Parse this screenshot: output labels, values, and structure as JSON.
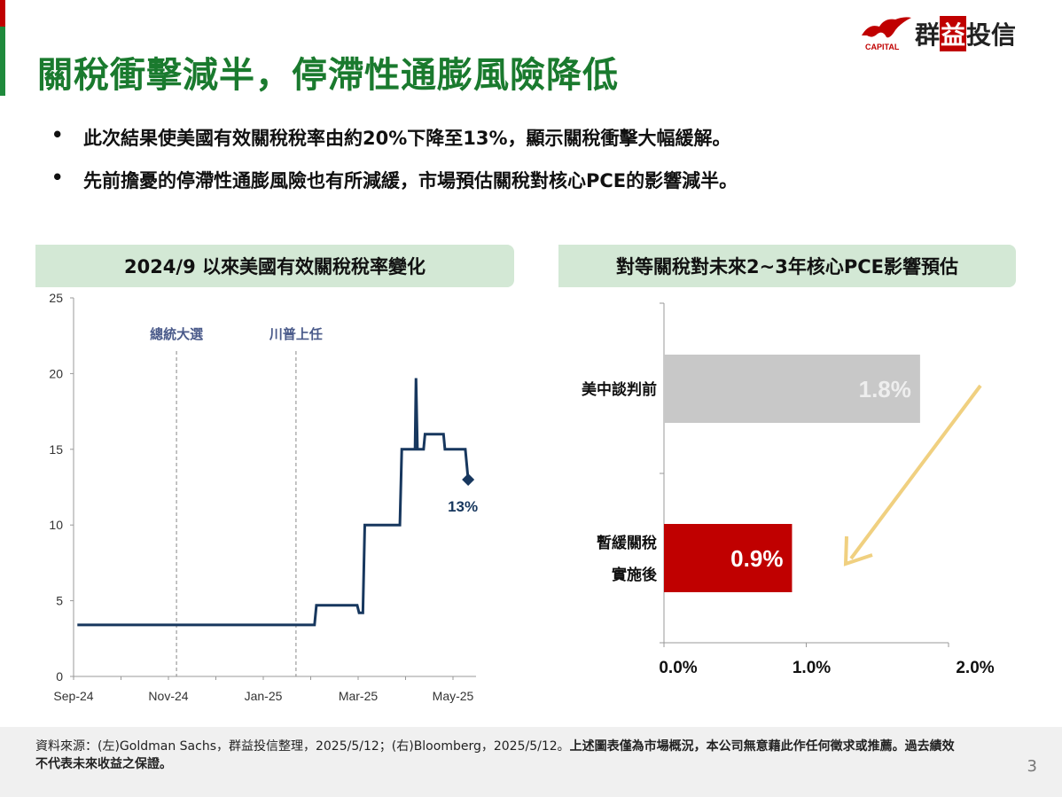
{
  "title": "關稅衝擊減半，停滯性通膨風險降低",
  "logo": {
    "caption": "CAPITAL",
    "name_a": "群",
    "name_b": "益",
    "name_c": "投信"
  },
  "bullets": [
    "此次結果使美國有效關稅稅率由約20%下降至13%，顯示關稅衝擊大幅緩解。",
    "先前擔憂的停滯性通膨風險也有所減緩，市場預估關稅對核心PCE的影響減半。"
  ],
  "left_panel_title": "2024/9 以來美國有效關稅稅率變化",
  "right_panel_title": "對等關稅對未來2~3年核心PCE影響預估",
  "colors": {
    "green": "#1a7a2e",
    "navy": "#17375e",
    "red": "#c00000",
    "grey": "#c8c8c8",
    "arrow": "#f0d080"
  },
  "chart_data": [
    {
      "type": "line",
      "title": "2024/9 以來美國有效關稅稅率變化",
      "x_unit": "months since Sep-24",
      "yticks": [
        "0",
        "5",
        "10",
        "15",
        "20",
        "25"
      ],
      "ylim": [
        0,
        25
      ],
      "xticks": [
        {
          "label": "Sep-24",
          "m": 0
        },
        {
          "label": "Nov-24",
          "m": 2
        },
        {
          "label": "Jan-25",
          "m": 4
        },
        {
          "label": "Mar-25",
          "m": 6
        },
        {
          "label": "May-25",
          "m": 8
        }
      ],
      "points": [
        [
          0.08,
          3.4
        ],
        [
          5.08,
          3.4
        ],
        [
          5.12,
          4.7
        ],
        [
          5.98,
          4.7
        ],
        [
          6.02,
          4.2
        ],
        [
          6.1,
          4.2
        ],
        [
          6.14,
          10
        ],
        [
          6.88,
          10
        ],
        [
          6.92,
          15
        ],
        [
          7.2,
          15
        ],
        [
          7.22,
          19.7
        ],
        [
          7.25,
          15
        ],
        [
          7.38,
          15
        ],
        [
          7.41,
          16
        ],
        [
          7.8,
          16
        ],
        [
          7.83,
          15
        ],
        [
          8.26,
          15
        ],
        [
          8.32,
          13
        ]
      ],
      "end_label": "13%",
      "annotations": [
        {
          "label": "總統大選",
          "m": 2.17
        },
        {
          "label": "川普上任",
          "m": 4.69
        }
      ]
    },
    {
      "type": "bar",
      "orientation": "horizontal",
      "title": "對等關稅對未來2~3年核心PCE影響預估",
      "categories": [
        "美中談判前",
        "暫緩關稅|實施後"
      ],
      "values": [
        1.8,
        0.9
      ],
      "labels": [
        "1.8%",
        "0.9%"
      ],
      "xticks": [
        "0.0%",
        "1.0%",
        "2.0%"
      ],
      "xlim": [
        0,
        2
      ]
    }
  ],
  "footer": {
    "source": "資料來源：(左)Goldman Sachs，群益投信整理，2025/5/12；(右)Bloomberg，2025/5/12。",
    "disclaimer": "上述圖表僅為市場概況，本公司無意藉此作任何徵求或推薦。過去績效不代表未來收益之保證。",
    "page": "3"
  }
}
